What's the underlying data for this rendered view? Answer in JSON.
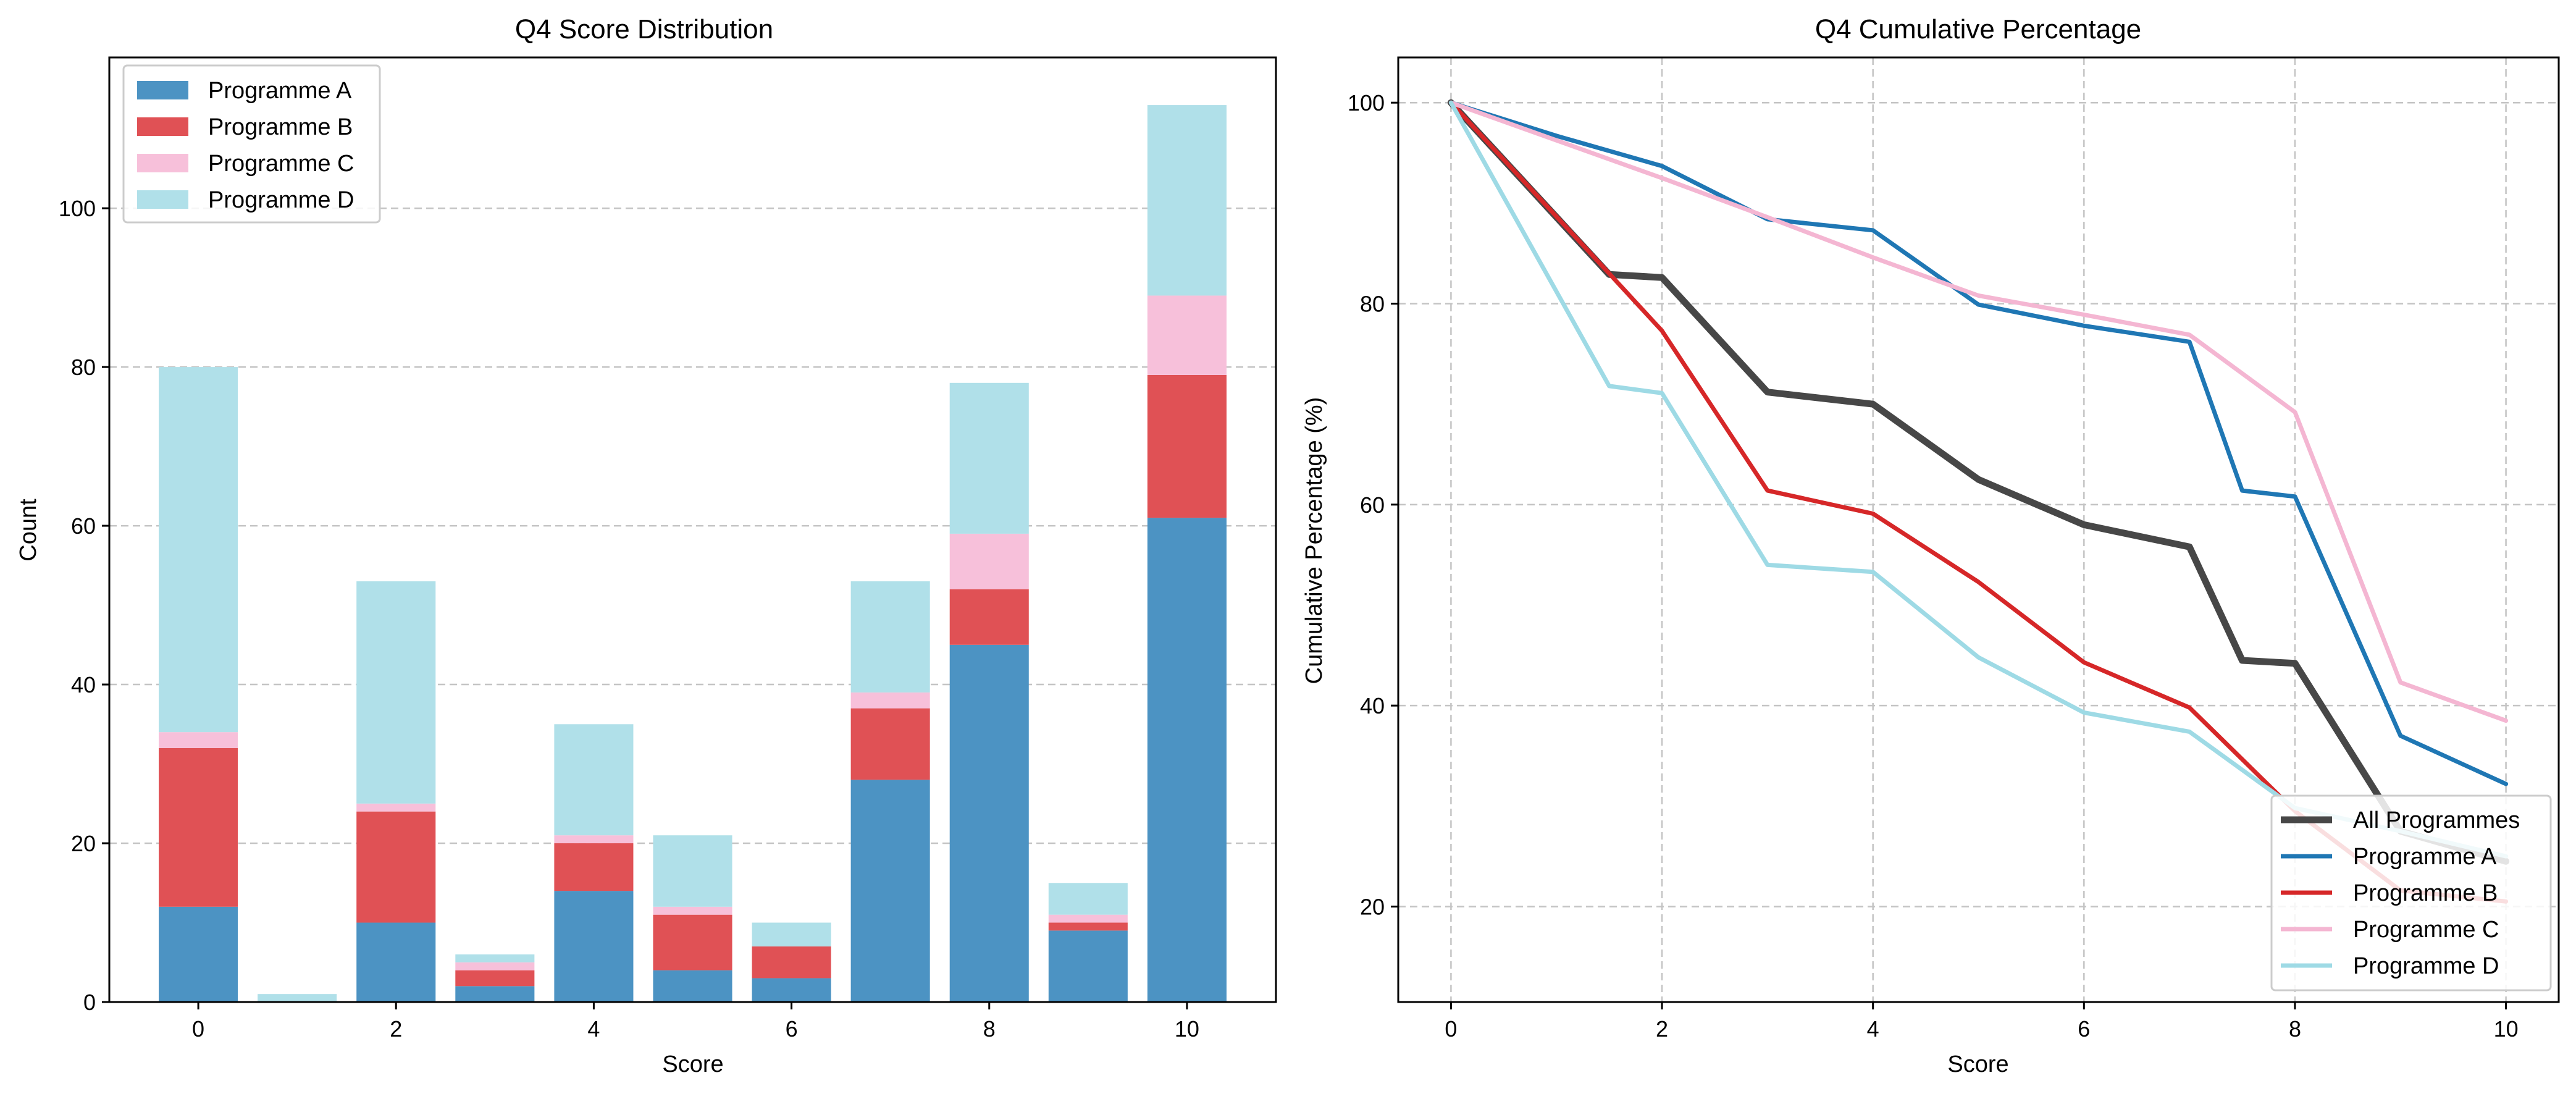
{
  "chart_data": [
    {
      "type": "bar",
      "stacked": true,
      "title": "Q4 Score Distribution",
      "xlabel": "Score",
      "ylabel": "Count",
      "xlim": [
        -0.9,
        10.9
      ],
      "ylim": [
        0,
        119
      ],
      "xticks": [
        0,
        2,
        4,
        6,
        8,
        10
      ],
      "yticks": [
        0,
        20,
        40,
        60,
        80,
        100
      ],
      "grid": "y-dashed",
      "legend_position": "upper-left",
      "bar_width": 0.8,
      "x": [
        0,
        1,
        2,
        3,
        4,
        5,
        6,
        7,
        8,
        9,
        10
      ],
      "series": [
        {
          "name": "Programme A",
          "color": "#4c93c3",
          "values": [
            12,
            0,
            10,
            2,
            14,
            4,
            3,
            28,
            45,
            9,
            61
          ]
        },
        {
          "name": "Programme B",
          "color": "#e05155",
          "values": [
            20,
            0,
            14,
            2,
            6,
            7,
            4,
            9,
            7,
            1,
            18
          ]
        },
        {
          "name": "Programme C",
          "color": "#f7c0da",
          "values": [
            2,
            0,
            1,
            1,
            1,
            1,
            0,
            2,
            7,
            1,
            10
          ]
        },
        {
          "name": "Programme D",
          "color": "#b0e0e9",
          "values": [
            46,
            1,
            28,
            1,
            14,
            9,
            3,
            14,
            19,
            4,
            24
          ]
        }
      ]
    },
    {
      "type": "line",
      "title": "Q4 Cumulative Percentage",
      "xlabel": "Score",
      "ylabel": "Cumulative Percentage (%)",
      "xlim": [
        -0.5,
        10.5
      ],
      "ylim": [
        10.5,
        104.5
      ],
      "xticks": [
        0,
        2,
        4,
        6,
        8,
        10
      ],
      "yticks": [
        20,
        40,
        60,
        80,
        100
      ],
      "grid": "both-dashed",
      "legend_position": "lower-right",
      "series": [
        {
          "name": "All Programmes",
          "color": "#474747",
          "width": 11,
          "x": [
            0,
            1.5,
            2,
            3,
            4,
            5,
            6,
            7,
            7.5,
            8,
            9,
            10
          ],
          "y": [
            100,
            82.9,
            82.6,
            71.2,
            70.0,
            62.5,
            58.0,
            55.8,
            44.5,
            44.2,
            27.5,
            24.5
          ]
        },
        {
          "name": "Programme A",
          "color": "#1f77b4",
          "width": 7,
          "x": [
            0,
            1,
            2,
            3,
            4,
            5,
            6,
            7,
            7.5,
            8,
            9,
            10
          ],
          "y": [
            100,
            96.7,
            93.7,
            88.4,
            87.3,
            79.9,
            77.8,
            76.2,
            61.4,
            60.8,
            37.0,
            32.2
          ]
        },
        {
          "name": "Programme B",
          "color": "#d62728",
          "width": 7,
          "x": [
            0,
            1.5,
            2,
            3,
            4,
            5,
            6,
            7,
            8,
            9,
            10
          ],
          "y": [
            100,
            83.0,
            77.3,
            61.4,
            59.1,
            52.3,
            44.3,
            39.8,
            29.5,
            21.6,
            20.5
          ]
        },
        {
          "name": "Programme C",
          "color": "#f4b6d2",
          "width": 7,
          "x": [
            0,
            2,
            3,
            4,
            5,
            6,
            7,
            8,
            9,
            10
          ],
          "y": [
            100,
            92.5,
            88.6,
            84.6,
            80.8,
            78.9,
            76.9,
            69.2,
            42.3,
            38.5
          ]
        },
        {
          "name": "Programme D",
          "color": "#9edae5",
          "width": 7,
          "x": [
            0,
            1.5,
            2,
            3,
            4,
            5,
            6,
            7,
            8,
            9,
            10
          ],
          "y": [
            100,
            71.8,
            71.1,
            54.0,
            53.3,
            44.8,
            39.3,
            37.4,
            29.8,
            27.5,
            25.0
          ]
        }
      ]
    }
  ]
}
